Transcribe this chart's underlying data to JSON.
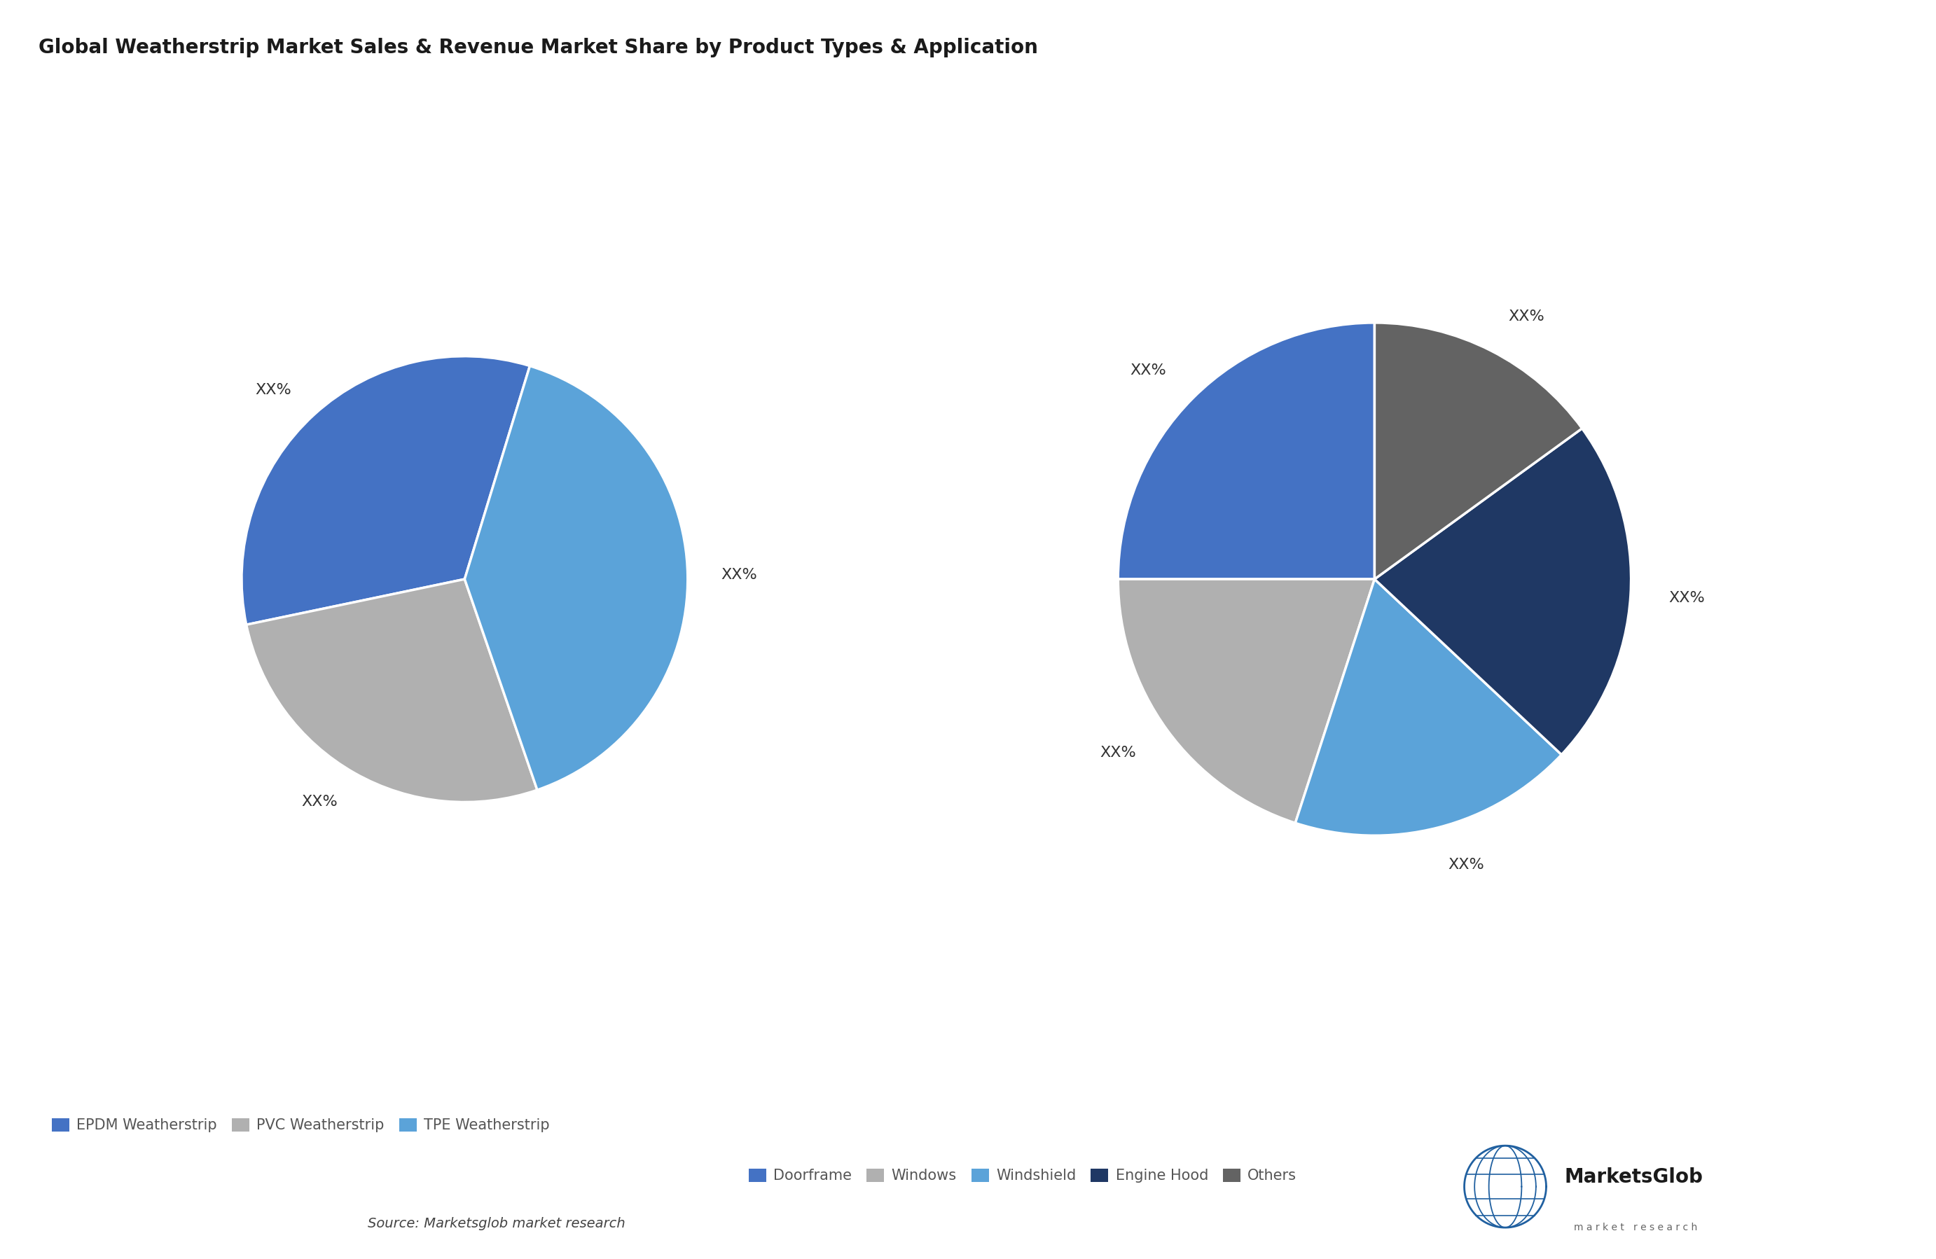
{
  "title": "Global Weatherstrip Market Sales & Revenue Market Share by Product Types & Application",
  "title_fontsize": 20,
  "background_color": "#ffffff",
  "pie1_values": [
    33,
    27,
    40
  ],
  "pie1_labels": [
    "XX%",
    "XX%",
    "XX%"
  ],
  "pie1_colors": [
    "#4472C4",
    "#B0B0B0",
    "#5BA3D9"
  ],
  "pie1_startangle": 73,
  "pie1_legend": [
    "EPDM Weatherstrip",
    "PVC Weatherstrip",
    "TPE Weatherstrip"
  ],
  "pie1_legend_colors": [
    "#4472C4",
    "#B0B0B0",
    "#5BA3D9"
  ],
  "pie2_values": [
    25,
    20,
    18,
    22,
    15
  ],
  "pie2_labels": [
    "XX%",
    "XX%",
    "XX%",
    "XX%",
    "XX%"
  ],
  "pie2_colors": [
    "#4472C4",
    "#B0B0B0",
    "#5BA3D9",
    "#1F3864",
    "#636363"
  ],
  "pie2_startangle": 90,
  "pie2_legend": [
    "Doorframe",
    "Windows",
    "Windshield",
    "Engine Hood",
    "Others"
  ],
  "pie2_legend_colors": [
    "#4472C4",
    "#B0B0B0",
    "#5BA3D9",
    "#1F3864",
    "#636363"
  ],
  "source_text": "Source: Marketsglob market research",
  "label_fontsize": 16,
  "legend_fontsize": 15
}
